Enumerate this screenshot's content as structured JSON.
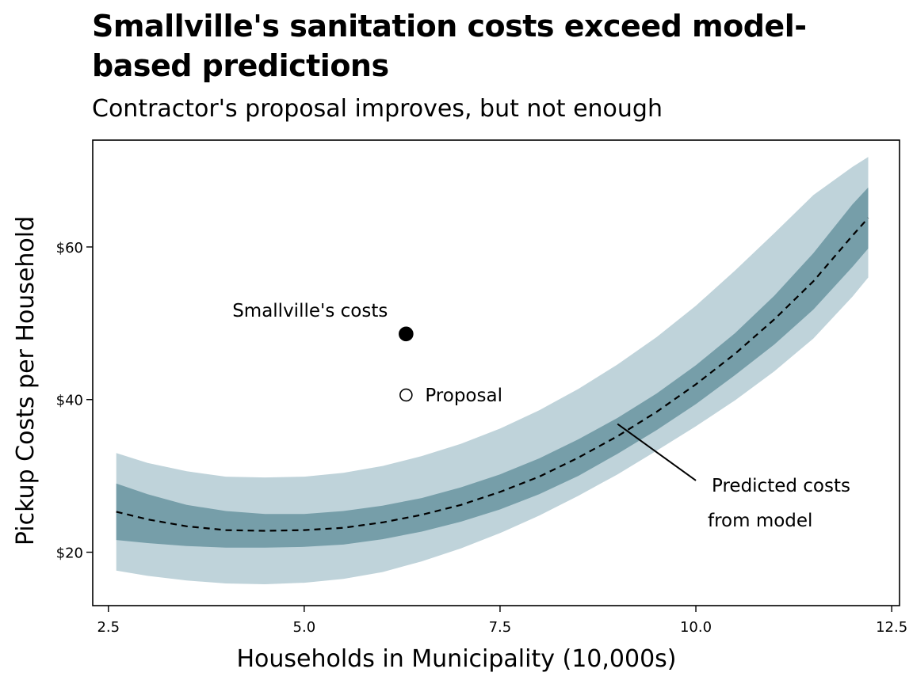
{
  "chart_data": {
    "type": "line",
    "title": "Smallville's sanitation costs exceed model-based predictions",
    "subtitle": "Contractor's proposal improves, but not enough",
    "xlabel": "Households in Municipality (10,000s)",
    "ylabel": "Pickup Costs per Household",
    "xlim": [
      2.3,
      12.6
    ],
    "ylim": [
      13,
      74
    ],
    "x_ticks": [
      2.5,
      5.0,
      7.5,
      10.0,
      12.5
    ],
    "x_tick_labels": [
      "2.5",
      "5.0",
      "7.5",
      "10.0",
      "12.5"
    ],
    "y_ticks": [
      20,
      40,
      60
    ],
    "y_tick_labels": [
      "$20",
      "$40",
      "$60"
    ],
    "prediction": {
      "x": [
        2.6,
        3.0,
        3.5,
        4.0,
        4.5,
        5.0,
        5.5,
        6.0,
        6.5,
        7.0,
        7.5,
        8.0,
        8.5,
        9.0,
        9.5,
        10.0,
        10.5,
        11.0,
        11.5,
        12.0,
        12.2
      ],
      "y": [
        25.3,
        24.3,
        23.4,
        22.9,
        22.8,
        22.9,
        23.2,
        23.9,
        24.9,
        26.2,
        27.9,
        29.9,
        32.4,
        35.2,
        38.4,
        42.0,
        46.0,
        50.5,
        55.5,
        61.5,
        63.8
      ],
      "inner_lower": [
        21.6,
        21.2,
        20.8,
        20.6,
        20.6,
        20.7,
        21.0,
        21.7,
        22.7,
        24.0,
        25.6,
        27.6,
        30.0,
        32.9,
        36.0,
        39.4,
        43.2,
        47.2,
        51.8,
        57.4,
        59.8
      ],
      "inner_upper": [
        29.0,
        27.6,
        26.2,
        25.4,
        25.0,
        25.0,
        25.4,
        26.1,
        27.1,
        28.5,
        30.2,
        32.3,
        34.8,
        37.6,
        40.8,
        44.5,
        48.7,
        53.6,
        59.2,
        65.6,
        67.8
      ],
      "outer_lower": [
        17.6,
        16.9,
        16.3,
        15.9,
        15.8,
        16.0,
        16.5,
        17.4,
        18.8,
        20.5,
        22.5,
        24.8,
        27.4,
        30.2,
        33.3,
        36.5,
        39.9,
        43.7,
        48.0,
        53.5,
        56.0
      ],
      "outer_upper": [
        33.0,
        31.7,
        30.6,
        29.9,
        29.8,
        29.9,
        30.4,
        31.3,
        32.6,
        34.2,
        36.2,
        38.6,
        41.4,
        44.6,
        48.2,
        52.3,
        56.9,
        61.8,
        66.8,
        70.5,
        71.8
      ]
    },
    "points": [
      {
        "x": 6.3,
        "y": 48.6,
        "label": "Smallville's costs",
        "filled": true
      },
      {
        "x": 6.3,
        "y": 40.6,
        "label": "Proposal",
        "filled": false
      }
    ],
    "annotation": {
      "line1": "Predicted costs",
      "line2": "from model",
      "from_x": 10.0,
      "from_y": 29.4,
      "to_x": 9.0,
      "to_y": 36.8
    },
    "colors": {
      "outer_band": "#bfd3da",
      "inner_band": "#769ea9",
      "line": "#000000"
    }
  }
}
